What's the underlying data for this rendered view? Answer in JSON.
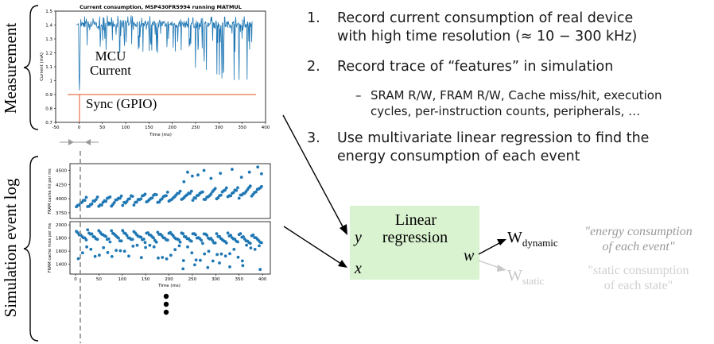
{
  "left_labels": {
    "measurement": "Measurement",
    "simulation": "Simulation event log"
  },
  "current_plot": {
    "title": "Current consumption, MSP430FR5994 running MATMUL",
    "ylabel": "Current (mA)",
    "xlabel": "Time (ms)",
    "xticks": [
      "-50",
      "0",
      "50",
      "100",
      "150",
      "200",
      "250",
      "300",
      "350",
      "400"
    ],
    "yticks": [
      "0.7",
      "0.8",
      "0.9",
      "1",
      "1.1",
      "1.2",
      "1.3",
      "1.4",
      "1.5"
    ],
    "mcu_label_line1": "MCU",
    "mcu_label_line2": "Current",
    "sync_label": "Sync (GPIO)",
    "colors": {
      "trace": "#1f77b4",
      "sync": "#e8734a"
    }
  },
  "chart_data": [
    {
      "type": "line",
      "title": "Current consumption, MSP430FR5994 running MATMUL",
      "xlabel": "Time (ms)",
      "ylabel": "Current (mA)",
      "xlim": [
        -50,
        400
      ],
      "ylim": [
        0.7,
        1.5
      ],
      "series": [
        {
          "x": [
            0,
            0.4,
            1,
            1.5,
            2,
            3,
            4
          ],
          "y": [
            1.4,
            1.22,
            1.0,
            0.93,
            1.05,
            1.3,
            1.38
          ]
        },
        {
          "x": [
            -5,
            380
          ],
          "y": [
            0.9,
            0.9
          ]
        }
      ]
    },
    {
      "type": "scatter",
      "ylabel": "FRAM cache hit per ms",
      "xlim": [
        -5,
        410
      ],
      "ylim": [
        3650,
        4620
      ],
      "yticks": [
        3750,
        4000,
        4250,
        4500
      ]
    },
    {
      "type": "scatter",
      "ylabel": "FRAM cache miss per ms",
      "xlabel": "Time (ms)",
      "xlim": [
        -5,
        410
      ],
      "ylim": [
        1250,
        2050
      ],
      "yticks": [
        1400,
        1600,
        1800,
        2000
      ]
    }
  ],
  "hit_plot": {
    "ylabel": "FRAM cache hit per ms",
    "yticks": [
      "3750",
      "4000",
      "4250",
      "4500"
    ]
  },
  "miss_plot": {
    "ylabel": "FRAM cache miss per ms",
    "xlabel": "Time (ms)",
    "yticks": [
      "1400",
      "1600",
      "1800",
      "2000"
    ],
    "xticks": [
      "0",
      "50",
      "100",
      "150",
      "200",
      "250",
      "300",
      "350",
      "400"
    ]
  },
  "steps": [
    {
      "num": "1.",
      "line1": "Record current consumption of real device",
      "line2": "with high time resolution (≈ 10 − 300 kHz)"
    },
    {
      "num": "2.",
      "line1": "Record trace of “features” in simulation",
      "line2": ""
    },
    {
      "num": "3.",
      "line1": "Use multivariate linear regression to find the",
      "line2": "energy consumption of each event"
    }
  ],
  "sub_bullet": {
    "dash": "–",
    "line1": "SRAM R/W, FRAM R/W, Cache miss/hit, execution",
    "line2": "cycles, per-instruction counts, peripherals, …"
  },
  "regression": {
    "line1": "Linear",
    "line2": "regression",
    "y": "y",
    "x": "x",
    "w": "w",
    "fill": "#d9f2d0"
  },
  "outputs": {
    "dynamic_base": "W",
    "dynamic_sub": "dynamic",
    "static_base": "W",
    "static_sub": "static",
    "dynamic_note_line1": "\"energy consumption",
    "dynamic_note_line2": "of each event\"",
    "static_note_line1": "\"static consumption",
    "static_note_line2": "of each state\""
  }
}
